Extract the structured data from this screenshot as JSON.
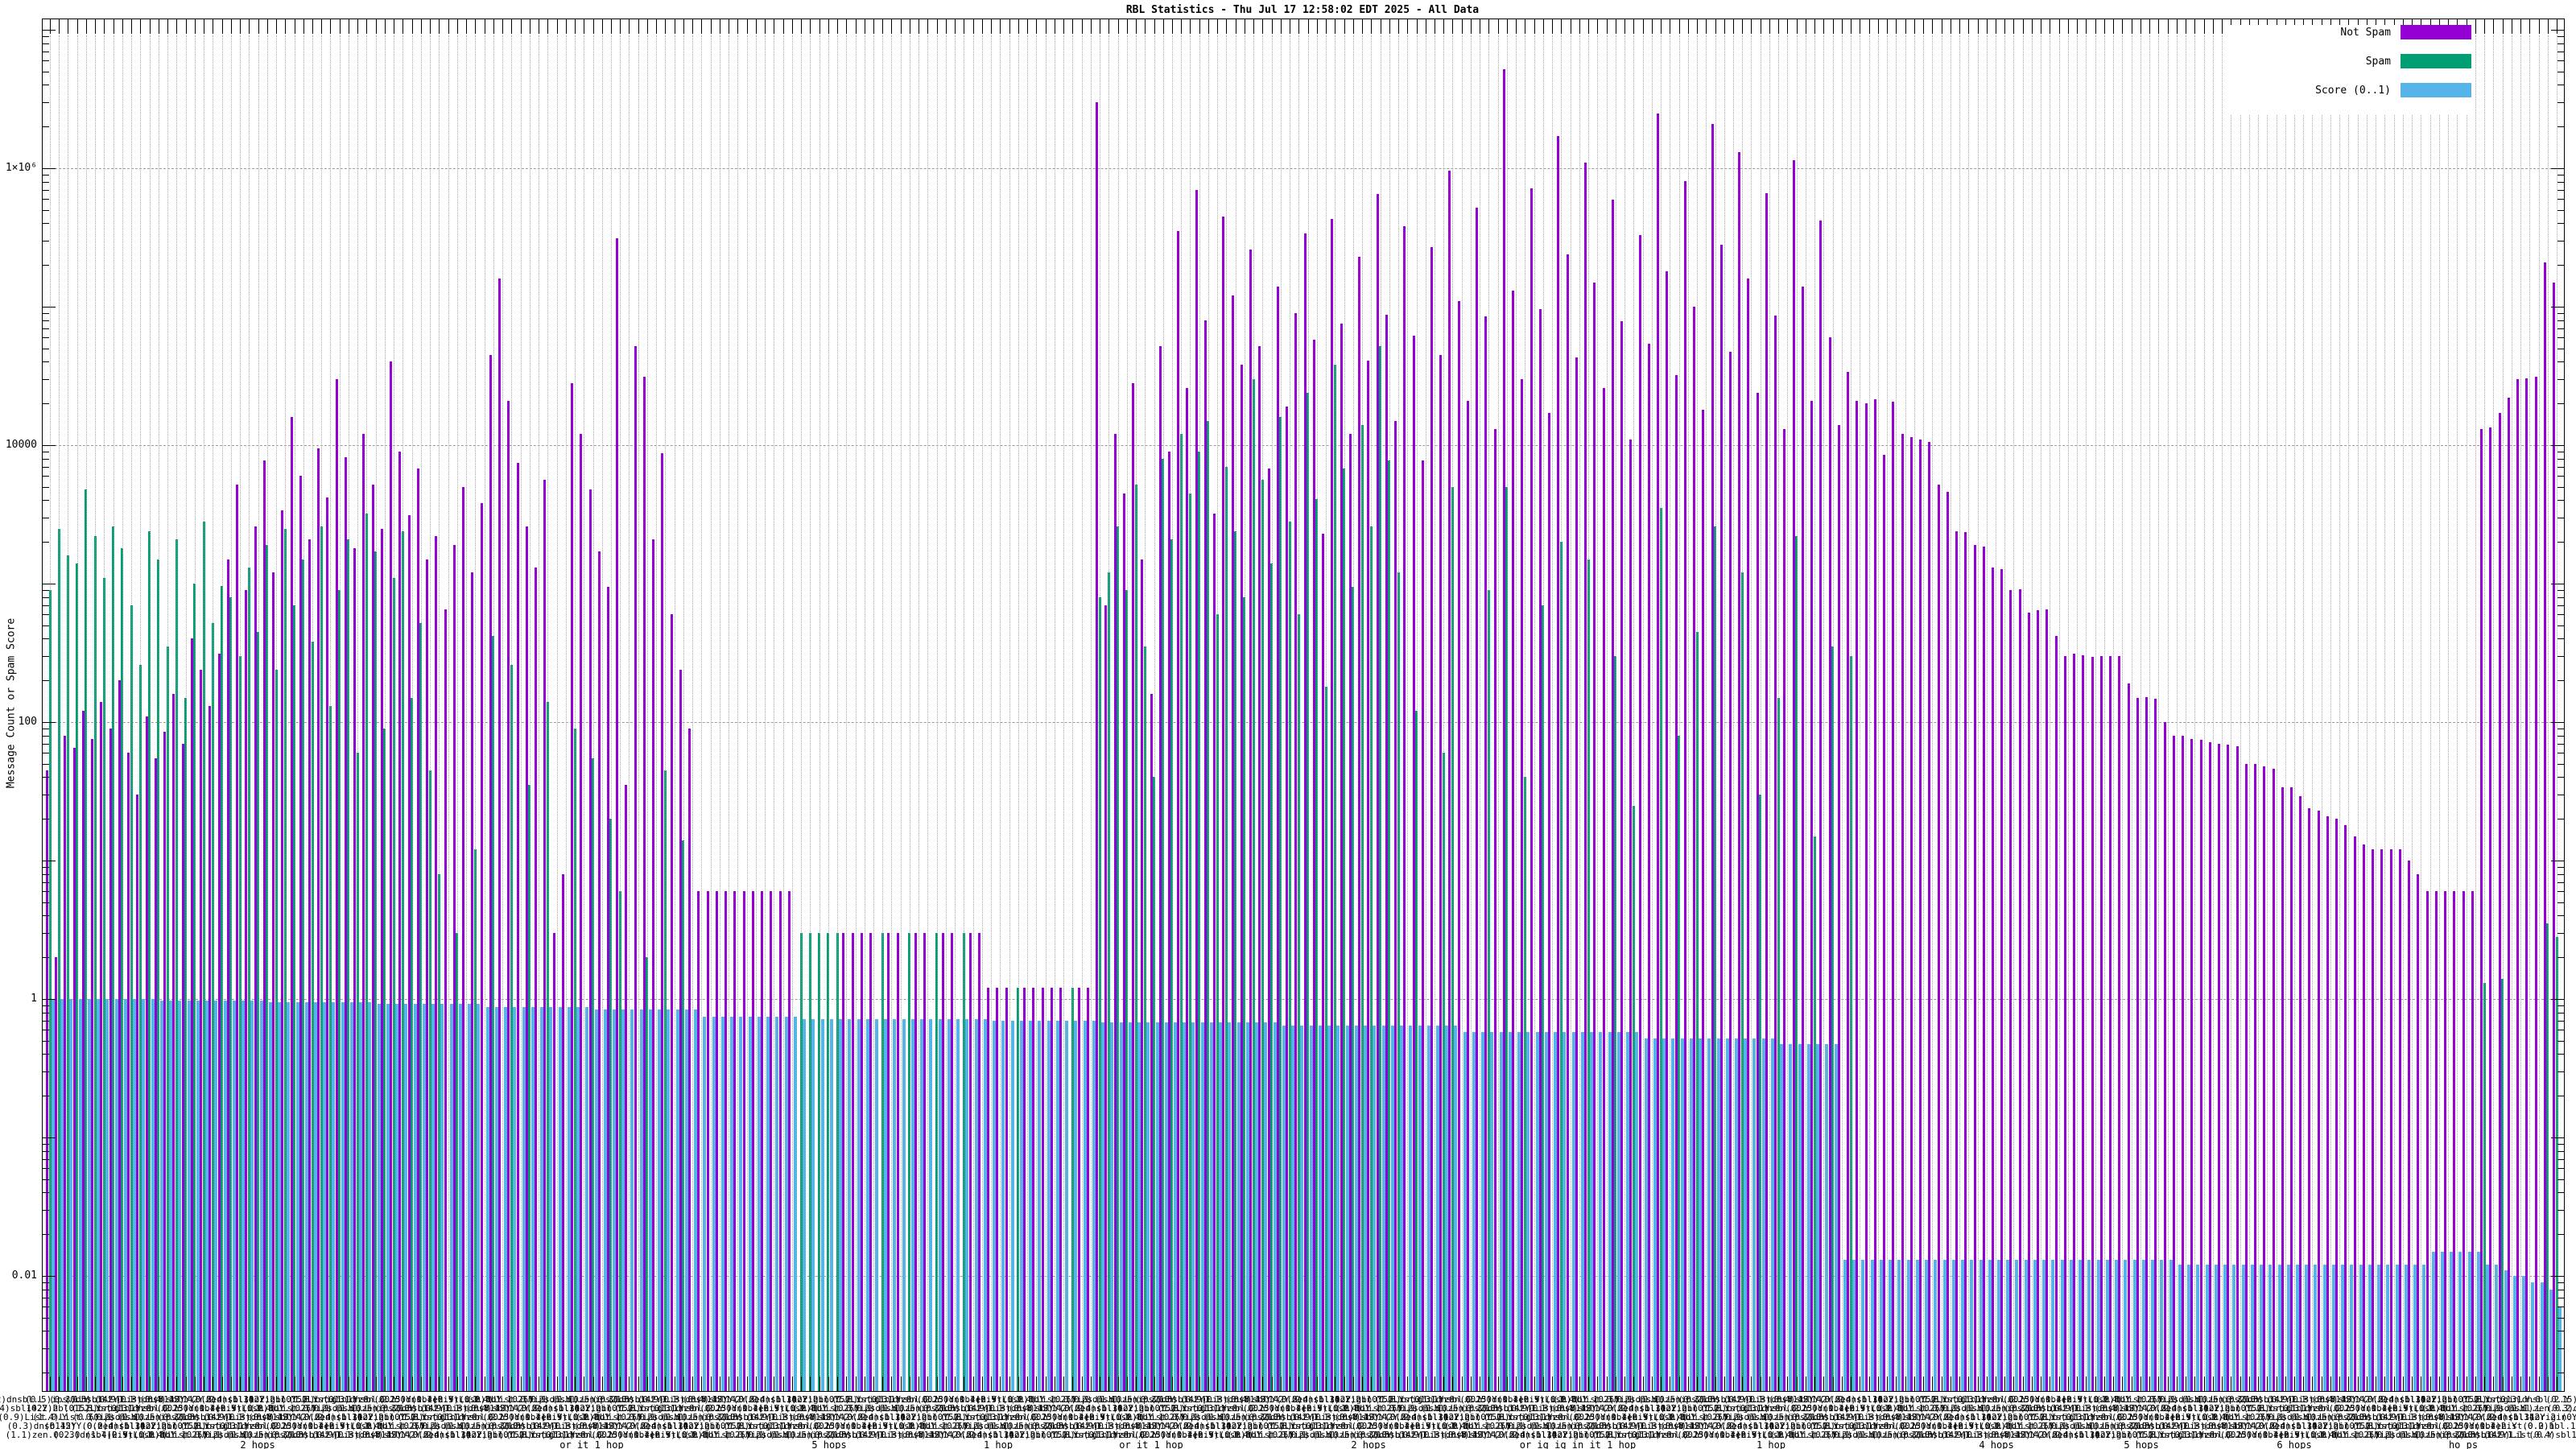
{
  "title": "RBL Statistics - Thu Jul 17 12:58:02 EDT 2025 - All Data",
  "y_axis_title": "Message Count or Spam Score",
  "legend": {
    "position": "top-right",
    "items": [
      {
        "label": "Not Spam",
        "color": "#9400d3"
      },
      {
        "label": "Spam",
        "color": "#009e73"
      },
      {
        "label": "Score (0..1)",
        "color": "#56b4e9"
      }
    ]
  },
  "colors": {
    "not_spam": "#9400d3",
    "spam": "#009e73",
    "score": "#56b4e9",
    "grid_dashed": "#9a9a9a",
    "grid_dotted": "#a0a0a0",
    "border": "#000000"
  },
  "chart_data": {
    "type": "bar",
    "y_scale": "log",
    "ylim": [
      0.0015,
      12000000
    ],
    "grid": true,
    "legend_position": "top-right inside",
    "title": "RBL Statistics - Thu Jul 17 12:58:02 EDT 2025 - All Data",
    "xlabel": "",
    "ylabel": "Message Count or Spam Score",
    "y_ticks": [
      {
        "value": 1000000,
        "label": "1×10⁶"
      },
      {
        "value": 10000,
        "label": "10000"
      },
      {
        "value": 100,
        "label": "100"
      },
      {
        "value": 1,
        "label": "1"
      },
      {
        "value": 0.01,
        "label": "0.01"
      }
    ],
    "x_tick_label_fragments": [
      "(0.2)dnsbl.L",
      "(0.4)sbl142Y.2",
      "(0.9)List.0.Y",
      "(0.3)dnsb142Y",
      "(1.1)zen.0.2.0",
      "(0.5)ips.1.Y",
      "(0.2)hbl.1.2.Y",
      "(1.4)List.0.0.1",
      "(0.15)Y.0.zen",
      "(0.3)dnsbl.2.Y",
      "(0.5)List.1.1",
      "(1.3)origin.Y.0"
    ],
    "x_sub_labels": [
      {
        "x": 320,
        "text": "2 hops"
      },
      {
        "x": 735,
        "text": "or it 1 hop"
      },
      {
        "x": 1030,
        "text": "5 hops"
      },
      {
        "x": 1240,
        "text": "1 hop"
      },
      {
        "x": 1430,
        "text": "or it 1 hop"
      },
      {
        "x": 1700,
        "text": "2 hops"
      },
      {
        "x": 1960,
        "text": "or ig ig in it 1 hop"
      },
      {
        "x": 2200,
        "text": "1 hop"
      },
      {
        "x": 2480,
        "text": "4 hops"
      },
      {
        "x": 2660,
        "text": "5 hops"
      },
      {
        "x": 2850,
        "text": "6 hops"
      },
      {
        "x": 3060,
        "text": "ho ps"
      }
    ],
    "series": [
      {
        "name": "Not Spam",
        "color": "#9400d3",
        "values": [
          45,
          2,
          80,
          65,
          120,
          75,
          140,
          90,
          200,
          60,
          30,
          110,
          55,
          85,
          160,
          70,
          400,
          240,
          130,
          310,
          1500,
          5200,
          900,
          2600,
          7800,
          1200,
          3400,
          16000,
          6000,
          2100,
          9500,
          4200,
          30000,
          8200,
          1800,
          12000,
          5200,
          2500,
          40000,
          9000,
          3100,
          6800,
          1500,
          2200,
          650,
          1900,
          5000,
          1200,
          3800,
          45000,
          160000,
          21000,
          7400,
          2600,
          1300,
          5600,
          3,
          8,
          28000,
          12000,
          4800,
          1700,
          950,
          310000,
          35,
          52000,
          31000,
          2100,
          8800,
          600,
          240,
          90,
          6,
          6,
          6,
          6,
          6,
          6,
          6,
          6,
          6,
          6,
          6,
          0,
          0,
          0,
          0,
          0,
          3,
          3,
          3,
          3,
          0,
          3,
          3,
          0,
          3,
          3,
          0,
          3,
          3,
          0,
          3,
          3,
          1.2,
          1.2,
          1.2,
          0,
          1.2,
          1.2,
          1.2,
          1.2,
          1.2,
          0,
          1.2,
          1.2,
          3000000,
          700,
          12000,
          4500,
          28000,
          1500,
          160,
          52000,
          9000,
          350000,
          26000,
          700000,
          80000,
          3200,
          450000,
          120000,
          38000,
          260000,
          52000,
          6800,
          140000,
          19000,
          90000,
          340000,
          58000,
          2300,
          430000,
          76000,
          12000,
          230000,
          41000,
          650000,
          88000,
          15000,
          380000,
          62000,
          7800,
          270000,
          45000,
          960000,
          110000,
          21000,
          520000,
          85000,
          13000,
          5200000,
          130000,
          30000,
          720000,
          96000,
          17000,
          1700000,
          240000,
          43000,
          1100000,
          150000,
          26000,
          590000,
          79000,
          11000,
          330000,
          54000,
          2500000,
          180000,
          32000,
          810000,
          100000,
          18000,
          2100000,
          280000,
          47000,
          1300000,
          160000,
          24000,
          660000,
          86000,
          13000,
          1150000,
          140000,
          21000,
          420000,
          60000,
          14000,
          34000,
          21000,
          20000,
          21500,
          8500,
          20500,
          12000,
          11500,
          11000,
          10500,
          5200,
          4600,
          2400,
          2350,
          1900,
          1850,
          1300,
          1280,
          900,
          910,
          620,
          640,
          650,
          420,
          300,
          310,
          305,
          295,
          300,
          298,
          300,
          190,
          150,
          152,
          148,
          100,
          80,
          80,
          75,
          74,
          72,
          70,
          69,
          67,
          50,
          50,
          48,
          46,
          34,
          34,
          29,
          24,
          23,
          21,
          20,
          18,
          15,
          13,
          12,
          12,
          12,
          12,
          10,
          8,
          6,
          6,
          6,
          6,
          6,
          6,
          13000,
          13500,
          17000,
          22000,
          30000,
          30500,
          31000,
          210000,
          150000
        ]
      },
      {
        "name": "Spam",
        "color": "#009e73",
        "values": [
          900,
          2500,
          1600,
          1400,
          4800,
          2200,
          1100,
          2600,
          1800,
          700,
          260,
          2400,
          1500,
          350,
          2100,
          150,
          1000,
          2800,
          520,
          960,
          800,
          300,
          1300,
          450,
          1900,
          240,
          2500,
          700,
          1500,
          380,
          2600,
          130,
          900,
          2100,
          60,
          3200,
          1700,
          90,
          1100,
          2400,
          150,
          520,
          45,
          8,
          0,
          3,
          0,
          12,
          0,
          420,
          0,
          260,
          0,
          35,
          0,
          140,
          0,
          0,
          90,
          0,
          55,
          0,
          20,
          6,
          0,
          0,
          2,
          0,
          45,
          0,
          14,
          0,
          0,
          0,
          0,
          0,
          0,
          0,
          0,
          0,
          0,
          0,
          0,
          3,
          3,
          3,
          3,
          3,
          0,
          0,
          0,
          0,
          3,
          0,
          0,
          3,
          0,
          0,
          3,
          0,
          0,
          3,
          0,
          0,
          0,
          0,
          0,
          1.2,
          0,
          0,
          0,
          0,
          0,
          1.2,
          0,
          0,
          800,
          1200,
          2600,
          900,
          5200,
          350,
          40,
          8000,
          2100,
          12000,
          4500,
          9000,
          15000,
          600,
          7000,
          2400,
          800,
          30000,
          5600,
          1400,
          16000,
          2800,
          600,
          24000,
          4100,
          180,
          38000,
          6800,
          950,
          14000,
          2600,
          52000,
          7800,
          1200,
          0,
          120,
          0,
          0,
          60,
          5000,
          0,
          0,
          0,
          900,
          0,
          5000,
          0,
          40,
          0,
          700,
          0,
          2000,
          0,
          0,
          1500,
          0,
          0,
          300,
          0,
          25,
          0,
          0,
          3500,
          0,
          80,
          0,
          450,
          0,
          2600,
          0,
          0,
          1200,
          0,
          30,
          0,
          150,
          0,
          2200,
          0,
          15,
          0,
          350,
          0,
          300,
          0,
          0,
          0,
          0,
          0,
          0,
          0,
          0,
          0,
          0,
          0,
          0,
          0,
          0,
          0,
          0,
          0,
          0,
          0,
          0,
          0,
          0,
          0,
          0,
          0,
          0,
          0,
          0,
          0,
          0,
          0,
          0,
          0,
          0,
          0,
          0,
          0,
          0,
          0,
          0,
          0,
          0,
          0,
          0,
          0,
          0,
          0,
          0,
          0,
          0,
          0,
          0,
          0,
          0,
          0,
          0,
          0,
          0,
          0,
          0,
          0,
          0,
          0,
          0,
          0,
          0,
          0,
          0,
          0,
          1.3,
          0,
          1.4,
          0,
          0,
          0,
          0,
          3.5,
          2.8
        ]
      },
      {
        "name": "Score (0..1)",
        "color": "#56b4e9",
        "values": [
          1.0,
          1.0,
          1.0,
          1.0,
          1.0,
          1.0,
          1.0,
          1.0,
          1.0,
          1.0,
          1.0,
          1.0,
          0.97,
          0.97,
          0.97,
          0.97,
          0.97,
          0.97,
          0.97,
          0.97,
          0.97,
          0.97,
          0.97,
          0.97,
          0.95,
          0.95,
          0.95,
          0.95,
          0.95,
          0.95,
          0.95,
          0.95,
          0.95,
          0.95,
          0.95,
          0.95,
          0.92,
          0.92,
          0.92,
          0.92,
          0.92,
          0.92,
          0.92,
          0.92,
          0.92,
          0.92,
          0.92,
          0.92,
          0.88,
          0.88,
          0.88,
          0.88,
          0.88,
          0.88,
          0.88,
          0.88,
          0.88,
          0.88,
          0.88,
          0.88,
          0.84,
          0.84,
          0.84,
          0.84,
          0.84,
          0.84,
          0.84,
          0.84,
          0.84,
          0.84,
          0.84,
          0.84,
          0.74,
          0.74,
          0.74,
          0.74,
          0.74,
          0.74,
          0.74,
          0.74,
          0.74,
          0.74,
          0.74,
          0.72,
          0.72,
          0.72,
          0.72,
          0.72,
          0.72,
          0.72,
          0.72,
          0.72,
          0.72,
          0.72,
          0.72,
          0.72,
          0.72,
          0.72,
          0.72,
          0.72,
          0.72,
          0.72,
          0.72,
          0.72,
          0.7,
          0.7,
          0.7,
          0.7,
          0.7,
          0.7,
          0.7,
          0.7,
          0.7,
          0.7,
          0.7,
          0.7,
          0.68,
          0.68,
          0.68,
          0.68,
          0.68,
          0.68,
          0.68,
          0.68,
          0.68,
          0.68,
          0.68,
          0.68,
          0.68,
          0.68,
          0.68,
          0.68,
          0.68,
          0.68,
          0.68,
          0.68,
          0.64,
          0.64,
          0.64,
          0.64,
          0.64,
          0.64,
          0.64,
          0.64,
          0.64,
          0.64,
          0.64,
          0.64,
          0.64,
          0.64,
          0.64,
          0.64,
          0.64,
          0.64,
          0.64,
          0.64,
          0.58,
          0.58,
          0.58,
          0.58,
          0.58,
          0.58,
          0.58,
          0.58,
          0.58,
          0.58,
          0.58,
          0.58,
          0.58,
          0.58,
          0.58,
          0.58,
          0.58,
          0.58,
          0.58,
          0.58,
          0.52,
          0.52,
          0.52,
          0.52,
          0.52,
          0.52,
          0.52,
          0.52,
          0.52,
          0.52,
          0.52,
          0.52,
          0.52,
          0.52,
          0.52,
          0.47,
          0.47,
          0.47,
          0.47,
          0.47,
          0.47,
          0.47,
          0.013,
          0.013,
          0.013,
          0.013,
          0.013,
          0.013,
          0.013,
          0.013,
          0.013,
          0.013,
          0.013,
          0.013,
          0.013,
          0.013,
          0.013,
          0.013,
          0.013,
          0.013,
          0.013,
          0.013,
          0.013,
          0.013,
          0.013,
          0.013,
          0.013,
          0.013,
          0.013,
          0.013,
          0.013,
          0.013,
          0.013,
          0.013,
          0.013,
          0.013,
          0.013,
          0.013,
          0.013,
          0.012,
          0.012,
          0.012,
          0.012,
          0.012,
          0.012,
          0.012,
          0.012,
          0.012,
          0.012,
          0.012,
          0.012,
          0.012,
          0.012,
          0.012,
          0.012,
          0.012,
          0.012,
          0.012,
          0.012,
          0.012,
          0.012,
          0.012,
          0.012,
          0.012,
          0.012,
          0.012,
          0.012,
          0.015,
          0.015,
          0.015,
          0.015,
          0.015,
          0.015,
          0.012,
          0.012,
          0.011,
          0.01,
          0.01,
          0.009,
          0.009,
          0.008,
          0.006
        ]
      }
    ]
  }
}
